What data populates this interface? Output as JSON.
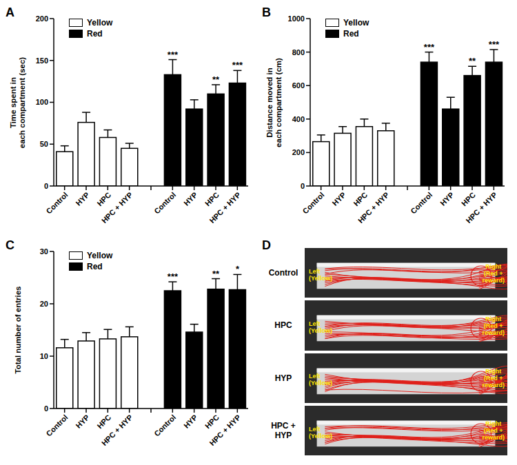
{
  "chart_data": [
    {
      "panel": "A",
      "type": "bar",
      "ylabel": "Time spent in\neach compartment (sec)",
      "categories": [
        "Control",
        "HYP",
        "HPC",
        "HPC + HYP"
      ],
      "series": [
        {
          "name": "Yellow",
          "color": "#ffffff",
          "values": [
            41,
            76,
            58,
            45
          ],
          "errors": [
            7,
            12,
            9,
            6
          ],
          "significance": [
            null,
            null,
            null,
            null
          ]
        },
        {
          "name": "Red",
          "color": "#000000",
          "values": [
            133,
            92,
            110,
            123
          ],
          "errors": [
            18,
            11,
            11,
            15
          ],
          "significance": [
            "***",
            null,
            "**",
            "***"
          ]
        }
      ],
      "ylim": [
        0,
        200
      ],
      "yticks": [
        0,
        50,
        100,
        150,
        200
      ],
      "legend": "upper left"
    },
    {
      "panel": "B",
      "type": "bar",
      "ylabel": "Distance moved in\neach compartment (cm)",
      "categories": [
        "Control",
        "HYP",
        "HPC",
        "HPC + HYP"
      ],
      "series": [
        {
          "name": "Yellow",
          "color": "#ffffff",
          "values": [
            265,
            315,
            355,
            330
          ],
          "errors": [
            40,
            40,
            45,
            45
          ],
          "significance": [
            null,
            null,
            null,
            null
          ]
        },
        {
          "name": "Red",
          "color": "#000000",
          "values": [
            740,
            460,
            660,
            740
          ],
          "errors": [
            60,
            70,
            55,
            75
          ],
          "significance": [
            "***",
            null,
            "**",
            "***"
          ]
        }
      ],
      "ylim": [
        0,
        1000
      ],
      "yticks": [
        0,
        200,
        400,
        600,
        800,
        1000
      ],
      "legend": "upper left"
    },
    {
      "panel": "C",
      "type": "bar",
      "ylabel": "Total number of entries",
      "categories": [
        "Control",
        "HYP",
        "HPC",
        "HPC + HYP"
      ],
      "series": [
        {
          "name": "Yellow",
          "color": "#ffffff",
          "values": [
            11.6,
            12.9,
            13.3,
            13.7
          ],
          "errors": [
            1.6,
            1.6,
            1.8,
            1.9
          ],
          "significance": [
            null,
            null,
            null,
            null
          ]
        },
        {
          "name": "Red",
          "color": "#000000",
          "values": [
            22.5,
            14.6,
            22.8,
            22.7
          ],
          "errors": [
            1.7,
            1.5,
            2.0,
            2.9
          ],
          "significance": [
            "***",
            null,
            "**",
            "*"
          ]
        }
      ],
      "ylim": [
        0,
        30
      ],
      "yticks": [
        0,
        10,
        20,
        30
      ],
      "legend": "upper left"
    }
  ],
  "images": {
    "panel": "D",
    "groups": [
      "Control",
      "HPC",
      "HYP",
      "HPC + HYP"
    ],
    "left_label": "Left\n(Yellow)",
    "right_label": "Right\n(Red +\nreward)"
  }
}
